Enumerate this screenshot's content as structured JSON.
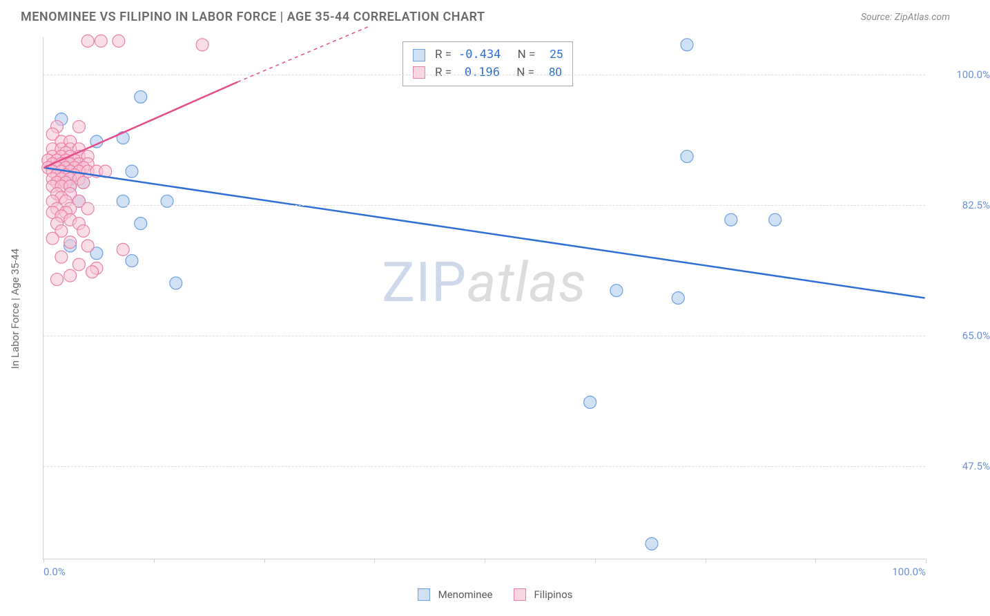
{
  "title": "MENOMINEE VS FILIPINO IN LABOR FORCE | AGE 35-44 CORRELATION CHART",
  "source": "Source: ZipAtlas.com",
  "ylabel": "In Labor Force | Age 35-44",
  "watermark": {
    "zip": "ZIP",
    "atlas": "atlas"
  },
  "chart": {
    "type": "scatter",
    "xlim": [
      0,
      100
    ],
    "ylim": [
      35,
      105
    ],
    "x_tick_positions": [
      0,
      12.5,
      25,
      37.5,
      50,
      62.5,
      75,
      87.5,
      100
    ],
    "x_tick_labels_shown": {
      "0": "0.0%",
      "100": "100.0%"
    },
    "y_gridlines": [
      47.5,
      65.0,
      82.5,
      100.0
    ],
    "y_tick_labels": [
      "47.5%",
      "65.0%",
      "82.5%",
      "100.0%"
    ],
    "background_color": "#ffffff",
    "grid_color": "#dcdcdc",
    "axis_color": "#cfcfcf",
    "tick_label_color": "#6b8fd6",
    "series": [
      {
        "name": "Menominee",
        "color_fill": "#b7d0f0",
        "color_stroke": "#6ea0e0",
        "swatch_fill": "#cfe0f5",
        "swatch_stroke": "#6ea0e0",
        "marker_radius": 9,
        "marker_opacity": 0.65,
        "points": [
          [
            73,
            104
          ],
          [
            11,
            97
          ],
          [
            2,
            94
          ],
          [
            9,
            91.5
          ],
          [
            6,
            91
          ],
          [
            73,
            89
          ],
          [
            10,
            87
          ],
          [
            3,
            86
          ],
          [
            3,
            85
          ],
          [
            4,
            83
          ],
          [
            9,
            83
          ],
          [
            14,
            83
          ],
          [
            78,
            80.5
          ],
          [
            83,
            80.5
          ],
          [
            11,
            80
          ],
          [
            3,
            77
          ],
          [
            6,
            76
          ],
          [
            10,
            75
          ],
          [
            15,
            72
          ],
          [
            65,
            71
          ],
          [
            72,
            70
          ],
          [
            62,
            56
          ],
          [
            69,
            37
          ],
          [
            3.5,
            88
          ],
          [
            4.5,
            85.5
          ]
        ],
        "trend": {
          "x1": 0,
          "y1": 87.5,
          "x2": 100,
          "y2": 70,
          "stroke": "#2e6fd6",
          "width": 2.5,
          "dash": "none"
        },
        "stats": {
          "r": "-0.434",
          "n": "25"
        }
      },
      {
        "name": "Filipinos",
        "color_fill": "#f6c2d4",
        "color_stroke": "#ea7fa8",
        "swatch_fill": "#f9d6e2",
        "swatch_stroke": "#ea7fa8",
        "marker_radius": 9,
        "marker_opacity": 0.55,
        "points": [
          [
            5,
            104.5
          ],
          [
            6.5,
            104.5
          ],
          [
            8.5,
            104.5
          ],
          [
            18,
            104
          ],
          [
            1.5,
            93
          ],
          [
            1,
            92
          ],
          [
            2,
            91
          ],
          [
            3,
            91
          ],
          [
            4,
            93
          ],
          [
            1,
            90
          ],
          [
            2,
            90
          ],
          [
            3,
            90
          ],
          [
            4,
            90
          ],
          [
            2.5,
            89.5
          ],
          [
            1,
            89
          ],
          [
            2,
            89
          ],
          [
            3,
            89
          ],
          [
            4,
            89
          ],
          [
            5,
            89
          ],
          [
            0.5,
            88.5
          ],
          [
            1.5,
            88.5
          ],
          [
            2.5,
            88.5
          ],
          [
            3.5,
            88.5
          ],
          [
            1,
            88
          ],
          [
            2,
            88
          ],
          [
            3,
            88
          ],
          [
            4,
            88
          ],
          [
            5,
            88
          ],
          [
            0.5,
            87.5
          ],
          [
            1.5,
            87.5
          ],
          [
            2.5,
            87.5
          ],
          [
            3.5,
            87.5
          ],
          [
            4.5,
            87.5
          ],
          [
            1,
            87
          ],
          [
            2,
            87
          ],
          [
            3,
            87
          ],
          [
            4,
            87
          ],
          [
            5,
            87
          ],
          [
            6,
            87
          ],
          [
            7,
            87
          ],
          [
            1.5,
            86.5
          ],
          [
            2.5,
            86.5
          ],
          [
            3.5,
            86.5
          ],
          [
            1,
            86
          ],
          [
            2,
            86
          ],
          [
            3,
            86
          ],
          [
            4,
            86
          ],
          [
            1.5,
            85.5
          ],
          [
            2.5,
            85.5
          ],
          [
            1,
            85
          ],
          [
            2,
            85
          ],
          [
            3,
            85
          ],
          [
            4.5,
            85.5
          ],
          [
            1.5,
            84
          ],
          [
            3,
            84
          ],
          [
            2,
            83.5
          ],
          [
            1,
            83
          ],
          [
            2.5,
            83
          ],
          [
            4,
            83
          ],
          [
            1.5,
            82
          ],
          [
            3,
            82
          ],
          [
            5,
            82
          ],
          [
            1,
            81.5
          ],
          [
            2.5,
            81.5
          ],
          [
            2,
            81
          ],
          [
            3,
            80.5
          ],
          [
            1.5,
            80
          ],
          [
            4,
            80
          ],
          [
            2,
            79
          ],
          [
            4.5,
            79
          ],
          [
            1,
            78
          ],
          [
            3,
            77.5
          ],
          [
            5,
            77
          ],
          [
            9,
            76.5
          ],
          [
            2,
            75.5
          ],
          [
            4,
            74.5
          ],
          [
            6,
            74
          ],
          [
            3,
            73
          ],
          [
            1.5,
            72.5
          ],
          [
            5.5,
            73.5
          ]
        ],
        "trend_solid": {
          "x1": 0,
          "y1": 87.5,
          "x2": 22,
          "y2": 99,
          "stroke": "#e54c87",
          "width": 2.5
        },
        "trend_dash": {
          "x1": 22,
          "y1": 99,
          "x2": 37,
          "y2": 106.5,
          "stroke": "#e54c87",
          "width": 1.5,
          "dash": "5,5"
        },
        "stats": {
          "r": "0.196",
          "n": "80"
        }
      }
    ]
  },
  "stats_box": {
    "rows": [
      {
        "swatch_fill": "#cfe0f5",
        "swatch_stroke": "#6ea0e0",
        "r_label": "R =",
        "r": "-0.434",
        "n_label": "N =",
        "n": "25"
      },
      {
        "swatch_fill": "#f9d6e2",
        "swatch_stroke": "#ea7fa8",
        "r_label": "R =",
        "r": "0.196",
        "n_label": "N =",
        "n": "80"
      }
    ]
  },
  "legend": [
    {
      "swatch_fill": "#cfe0f5",
      "swatch_stroke": "#6ea0e0",
      "label": "Menominee"
    },
    {
      "swatch_fill": "#f9d6e2",
      "swatch_stroke": "#ea7fa8",
      "label": "Filipinos"
    }
  ]
}
